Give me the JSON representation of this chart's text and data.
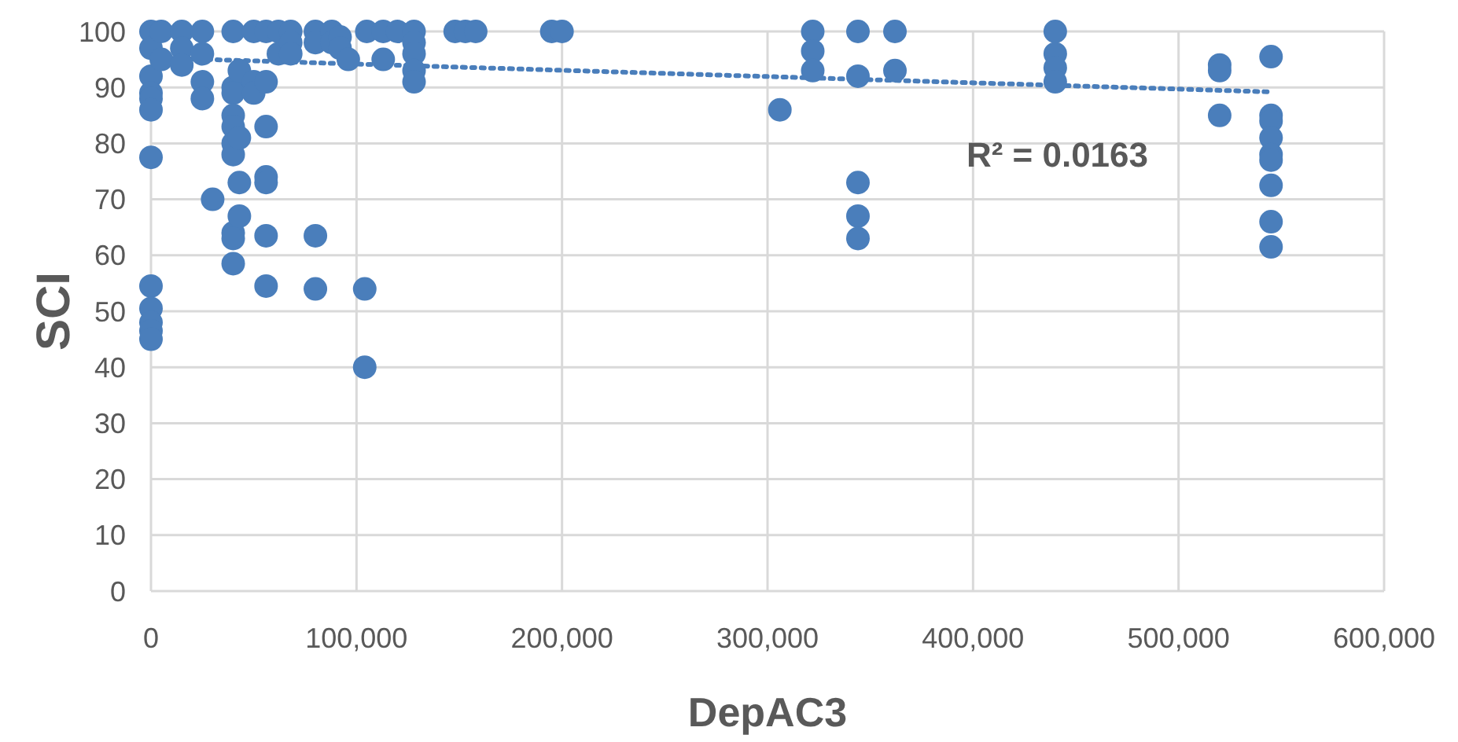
{
  "chart_data": {
    "type": "scatter",
    "xlabel": "DepAC3",
    "ylabel": "SCI",
    "xlim": [
      0,
      600000
    ],
    "ylim": [
      0,
      100
    ],
    "xticks": [
      {
        "value": 0,
        "label": "0"
      },
      {
        "value": 100000,
        "label": "100,000"
      },
      {
        "value": 200000,
        "label": "200,000"
      },
      {
        "value": 300000,
        "label": "300,000"
      },
      {
        "value": 400000,
        "label": "400,000"
      },
      {
        "value": 500000,
        "label": "500,000"
      },
      {
        "value": 600000,
        "label": "600,000"
      }
    ],
    "yticks": [
      0,
      10,
      20,
      30,
      40,
      50,
      60,
      70,
      80,
      90,
      100
    ],
    "grid": true,
    "marker": "circle",
    "annotations": [
      "R² = 0.0163"
    ],
    "series": [
      {
        "color": "#4a7ebb",
        "x": [
          0,
          0,
          0,
          0,
          0,
          0,
          0,
          0,
          0,
          0,
          0,
          0,
          5000,
          5000,
          15000,
          15000,
          15000,
          25000,
          25000,
          25000,
          25000,
          30000,
          40000,
          40000,
          40000,
          40000,
          40000,
          40000,
          40000,
          40000,
          40000,
          40000,
          43000,
          43000,
          43000,
          43000,
          50000,
          50000,
          50000,
          56000,
          56000,
          56000,
          56000,
          56000,
          56000,
          56000,
          62000,
          62000,
          68000,
          68000,
          68000,
          80000,
          80000,
          80000,
          80000,
          88000,
          88000,
          92000,
          92000,
          96000,
          104000,
          104000,
          105000,
          113000,
          113000,
          120000,
          128000,
          128000,
          128000,
          128000,
          128000,
          148000,
          153000,
          158000,
          195000,
          200000,
          306000,
          322000,
          322000,
          322000,
          344000,
          344000,
          344000,
          344000,
          344000,
          362000,
          362000,
          440000,
          440000,
          440000,
          440000,
          520000,
          520000,
          520000,
          545000,
          545000,
          545000,
          545000,
          545000,
          545000,
          545000,
          545000,
          545000
        ],
        "values": [
          100,
          97,
          92,
          89,
          88,
          86,
          77.5,
          54.5,
          50.5,
          48,
          46.5,
          45,
          100,
          95,
          100,
          97,
          94,
          100,
          96,
          91,
          88,
          70,
          100,
          90,
          89,
          85,
          83,
          80,
          78,
          64,
          63,
          58.5,
          93,
          81,
          73,
          67,
          100,
          91,
          89,
          100,
          91,
          83,
          74,
          73,
          63.5,
          54.5,
          100,
          96,
          100,
          98,
          96,
          100,
          98,
          63.5,
          54,
          100,
          98,
          99,
          97,
          95,
          54,
          40,
          100,
          100,
          95,
          100,
          100,
          98,
          96,
          93,
          91,
          100,
          100,
          100,
          100,
          100,
          86,
          100,
          96.5,
          93,
          100,
          92,
          73,
          67,
          63,
          100,
          93,
          100,
          96,
          93.5,
          91,
          94,
          93,
          85,
          95.5,
          85,
          84,
          81,
          78,
          77,
          72.5,
          66,
          61.5
        ]
      },
      {
        "type": "line",
        "color": "#4a7ebb",
        "line_style": "dotted",
        "marker": "none",
        "x": [
          0,
          545000
        ],
        "values": [
          95.3,
          89.2
        ]
      }
    ]
  }
}
